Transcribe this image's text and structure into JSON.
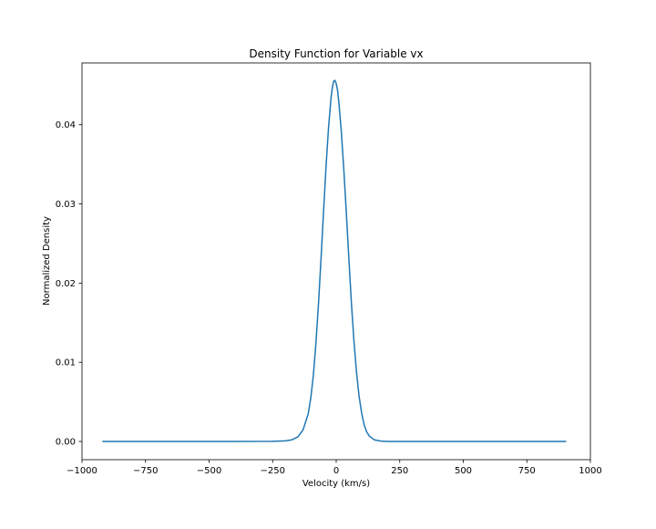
{
  "chart_data": {
    "type": "line",
    "title": "Density Function for Variable vx",
    "xlabel": "Velocity (km/s)",
    "ylabel": "Normalized Density",
    "xlim": [
      -1000,
      1000
    ],
    "ylim": [
      -0.0023,
      0.0478
    ],
    "xticks": [
      -1000,
      -750,
      -500,
      -250,
      0,
      250,
      500,
      750,
      1000
    ],
    "xtick_labels": [
      "−1000",
      "−750",
      "−500",
      "−250",
      "0",
      "250",
      "500",
      "750",
      "1000"
    ],
    "yticks": [
      0.0,
      0.01,
      0.02,
      0.03,
      0.04
    ],
    "ytick_labels": [
      "0.00",
      "0.01",
      "0.02",
      "0.03",
      "0.04"
    ],
    "grid": false,
    "series": [
      {
        "color": "#1f77b4",
        "x": [
          -920,
          -800,
          -600,
          -400,
          -250,
          -200,
          -175,
          -150,
          -130,
          -110,
          -100,
          -90,
          -80,
          -70,
          -60,
          -50,
          -40,
          -30,
          -20,
          -15,
          -10,
          -5,
          0,
          5,
          10,
          20,
          30,
          40,
          50,
          60,
          70,
          80,
          90,
          100,
          110,
          120,
          130,
          150,
          175,
          200,
          250,
          400,
          600,
          800,
          905
        ],
        "y": [
          0,
          0,
          0,
          0,
          2e-05,
          8e-05,
          0.0002,
          0.0006,
          0.0015,
          0.0035,
          0.0055,
          0.0083,
          0.0123,
          0.0172,
          0.0229,
          0.0289,
          0.0347,
          0.0397,
          0.0435,
          0.0447,
          0.0455,
          0.0456,
          0.0452,
          0.0444,
          0.043,
          0.0392,
          0.0343,
          0.0288,
          0.023,
          0.0174,
          0.0126,
          0.0087,
          0.0057,
          0.0036,
          0.0021,
          0.0012,
          0.0007,
          0.0002,
          5e-05,
          1e-05,
          0,
          0,
          0,
          0,
          0
        ]
      }
    ]
  }
}
